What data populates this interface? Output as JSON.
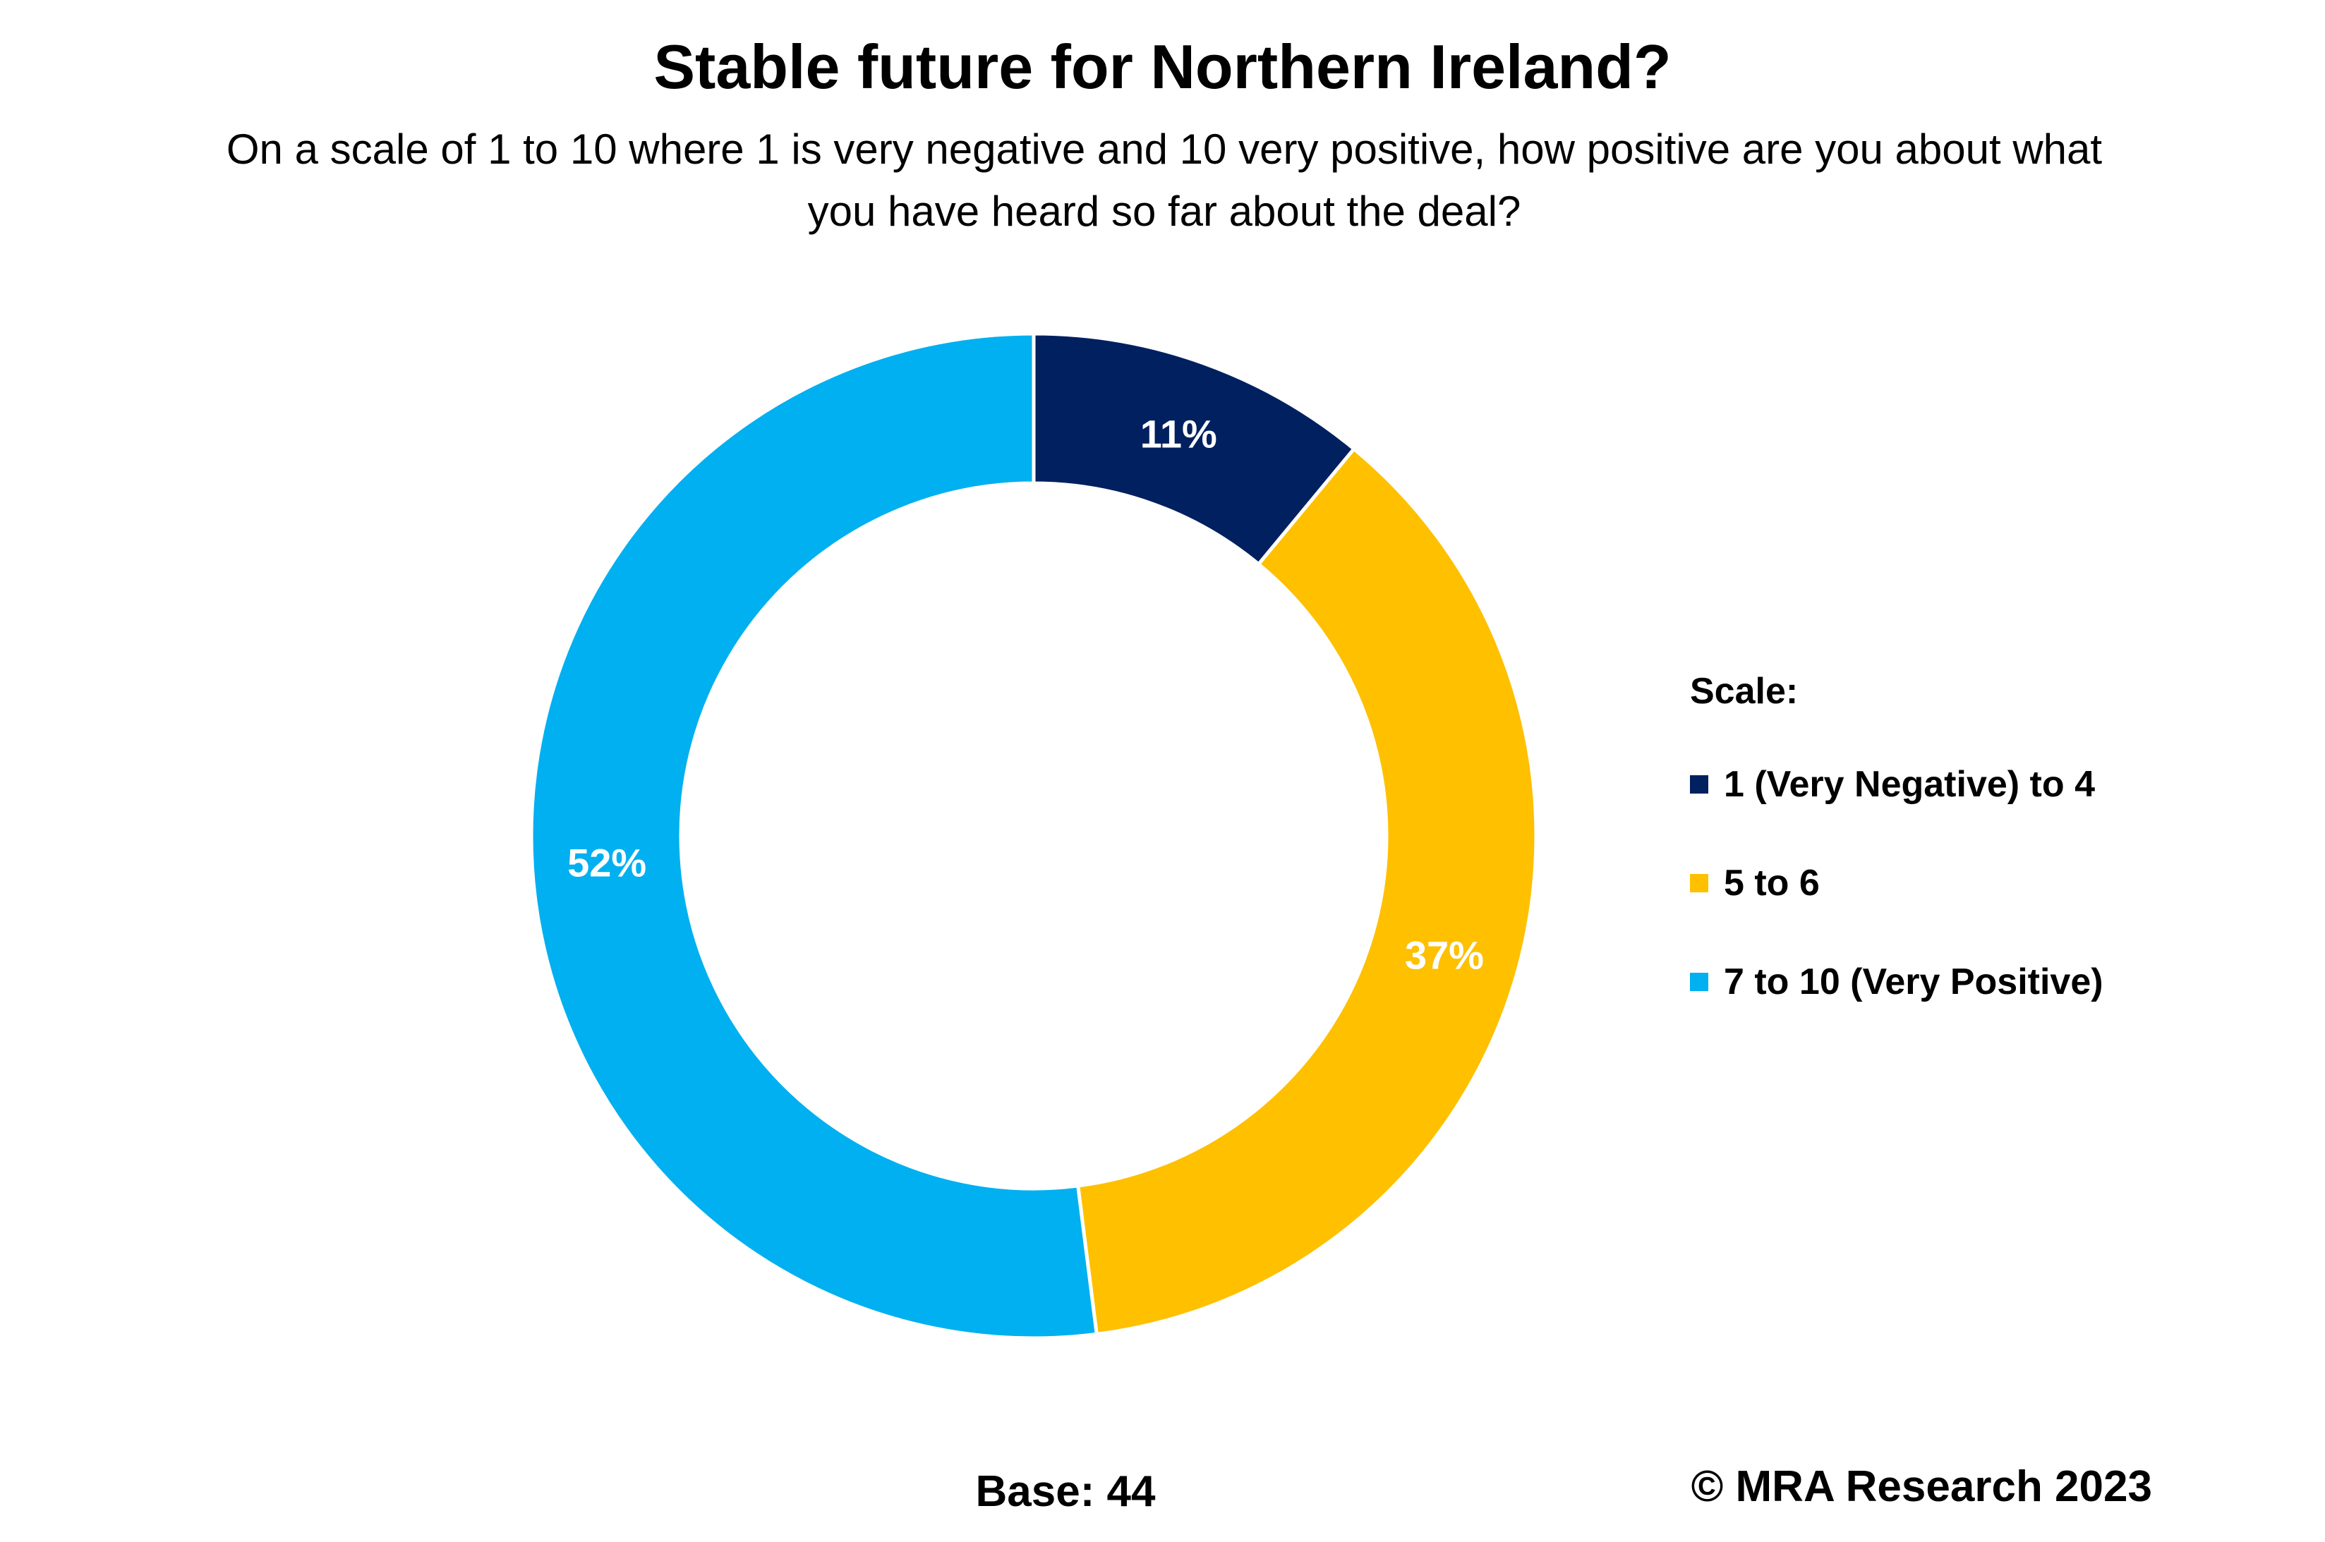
{
  "chart_data": {
    "type": "pie",
    "variant": "donut",
    "title": "Stable future for Northern Ireland?",
    "subtitle": "On a scale of 1 to 10 where 1 is very negative and 10 very positive, how positive are you about what you have heard so far about the deal?",
    "legend_title": "Scale:",
    "legend_position": "right",
    "slices": [
      {
        "label": "1 (Very Negative) to 4",
        "value": 11,
        "data_label": "11%",
        "color": "#002060"
      },
      {
        "label": "5 to 6",
        "value": 37,
        "data_label": "37%",
        "color": "#FFC000"
      },
      {
        "label": "7 to 10 (Very Positive)",
        "value": 52,
        "data_label": "52%",
        "color": "#00B0F0"
      }
    ]
  },
  "footer": {
    "base": "Base: 44",
    "copyright": "© MRA Research 2023"
  }
}
